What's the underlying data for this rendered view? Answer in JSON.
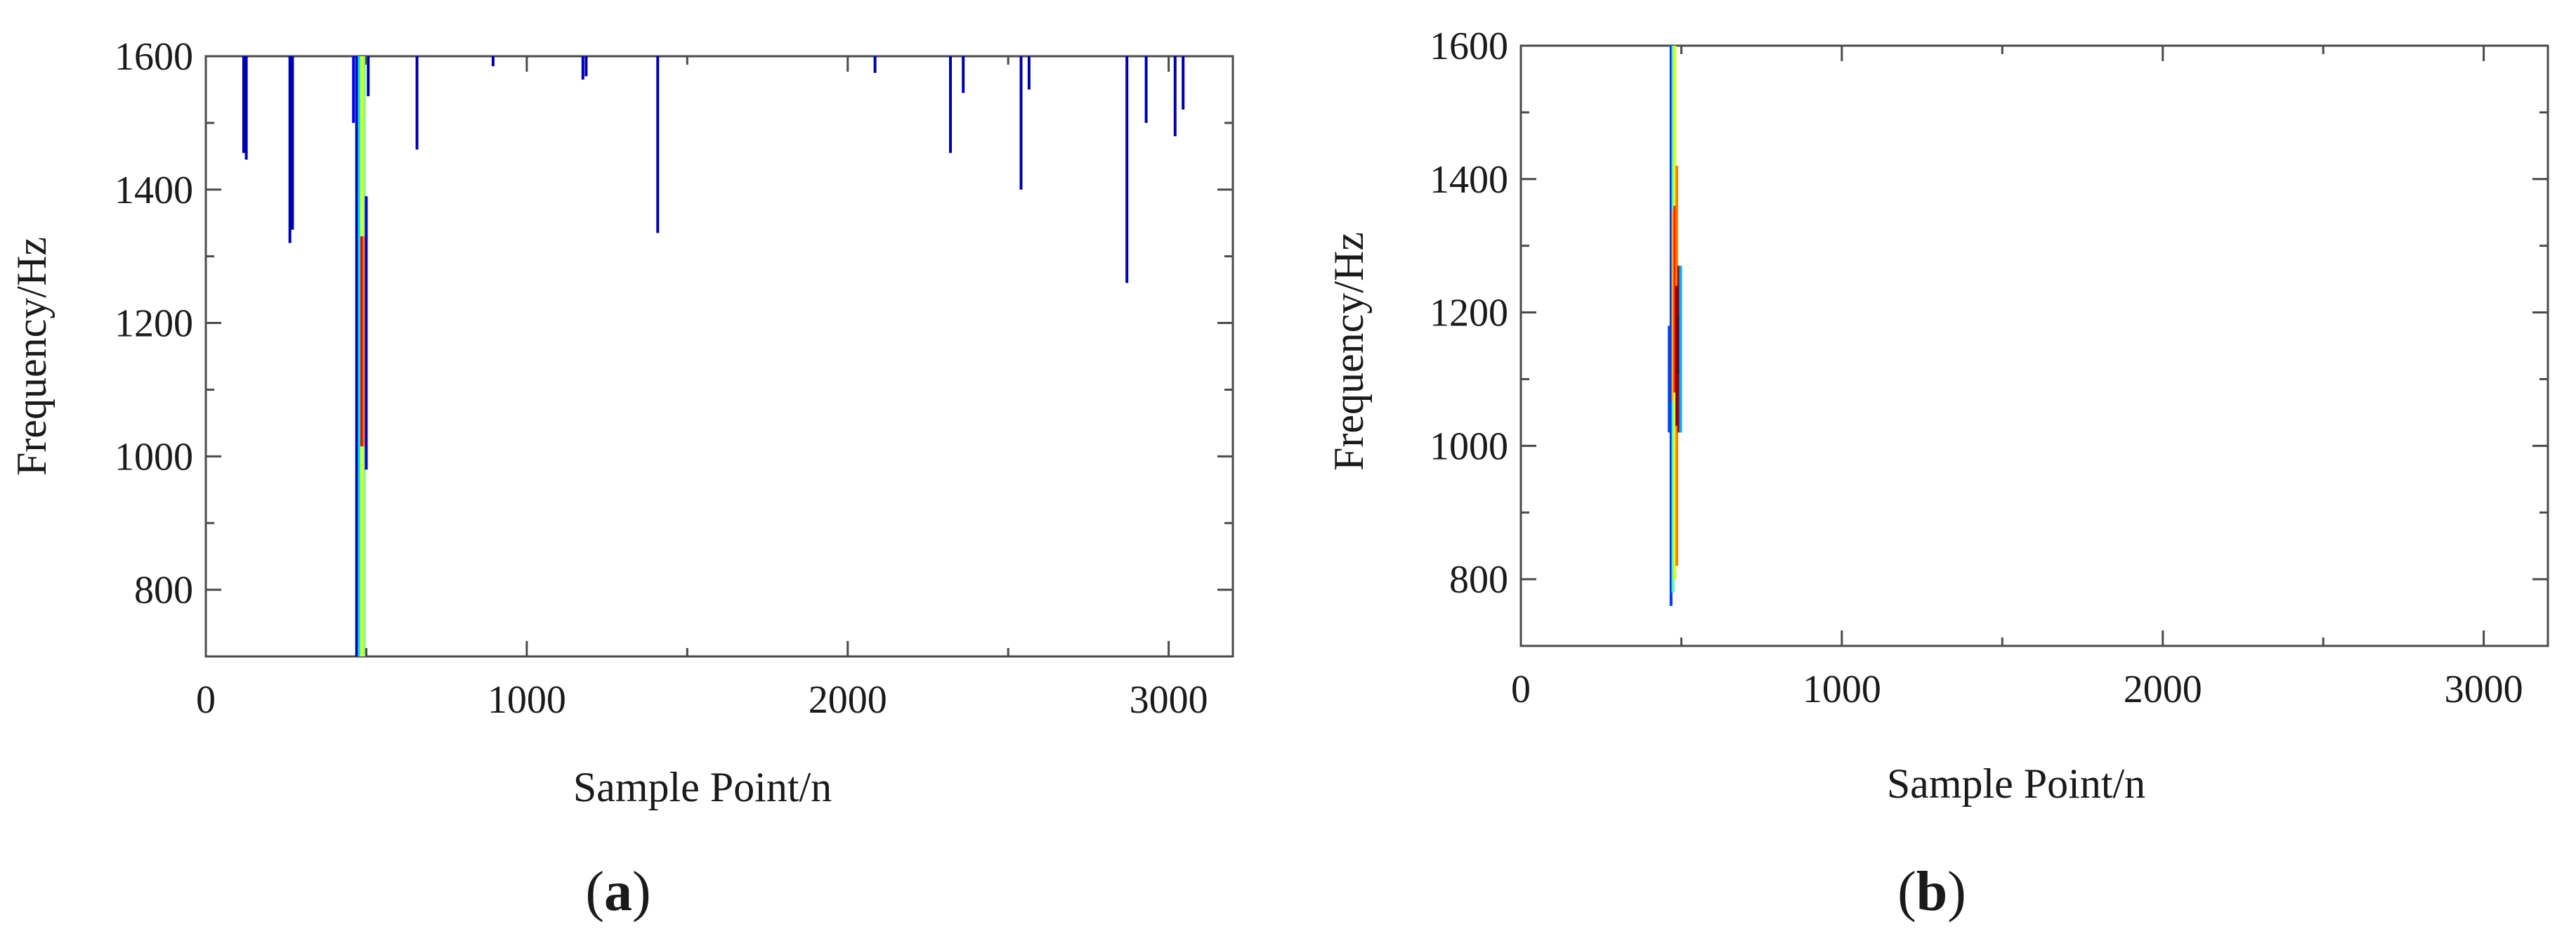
{
  "chart_data": [
    {
      "type": "scatter",
      "panel": "a",
      "panel_label": "a",
      "xlabel": "Sample Point/n",
      "ylabel": "Frequency/Hz",
      "xlim": [
        0,
        3200
      ],
      "ylim": [
        700,
        1600
      ],
      "xticks": [
        0,
        1000,
        2000,
        3000
      ],
      "yticks": [
        800,
        1000,
        1200,
        1400,
        1600
      ],
      "minor_ticks": true,
      "grid": false,
      "legend": "none",
      "colormap": "jet",
      "spikes": [
        {
          "x": 118,
          "y0": 1455,
          "y1": 1600,
          "level": 0.05
        },
        {
          "x": 126,
          "y0": 1445,
          "y1": 1600,
          "level": 0.05
        },
        {
          "x": 262,
          "y0": 1320,
          "y1": 1600,
          "level": 0.05
        },
        {
          "x": 270,
          "y0": 1340,
          "y1": 1600,
          "level": 0.05
        },
        {
          "x": 460,
          "y0": 1500,
          "y1": 1600,
          "level": 0.12
        },
        {
          "x": 470,
          "y0": 700,
          "y1": 1600,
          "level": 0.05
        },
        {
          "x": 478,
          "y0": 700,
          "y1": 1600,
          "level": 0.35
        },
        {
          "x": 486,
          "y0": 700,
          "y1": 1600,
          "level": 0.62
        },
        {
          "x": 494,
          "y0": 700,
          "y1": 1600,
          "level": 0.5
        },
        {
          "x": 500,
          "y0": 980,
          "y1": 1390,
          "level": 0.08
        },
        {
          "x": 506,
          "y0": 1540,
          "y1": 1600,
          "level": 0.05
        },
        {
          "x": 658,
          "y0": 1460,
          "y1": 1600,
          "level": 0.05
        },
        {
          "x": 895,
          "y0": 1585,
          "y1": 1600,
          "level": 0.05
        },
        {
          "x": 1175,
          "y0": 1565,
          "y1": 1600,
          "level": 0.05
        },
        {
          "x": 1185,
          "y0": 1570,
          "y1": 1600,
          "level": 0.05
        },
        {
          "x": 1408,
          "y0": 1335,
          "y1": 1600,
          "level": 0.05
        },
        {
          "x": 2085,
          "y0": 1575,
          "y1": 1600,
          "level": 0.05
        },
        {
          "x": 2320,
          "y0": 1455,
          "y1": 1600,
          "level": 0.05
        },
        {
          "x": 2360,
          "y0": 1545,
          "y1": 1600,
          "level": 0.05
        },
        {
          "x": 2540,
          "y0": 1400,
          "y1": 1600,
          "level": 0.05
        },
        {
          "x": 2565,
          "y0": 1550,
          "y1": 1600,
          "level": 0.05
        },
        {
          "x": 2870,
          "y0": 1260,
          "y1": 1600,
          "level": 0.05
        },
        {
          "x": 2930,
          "y0": 1500,
          "y1": 1600,
          "level": 0.05
        },
        {
          "x": 3020,
          "y0": 1480,
          "y1": 1600,
          "level": 0.05
        },
        {
          "x": 3045,
          "y0": 1520,
          "y1": 1600,
          "level": 0.05
        }
      ]
    },
    {
      "type": "scatter",
      "panel": "b",
      "panel_label": "b",
      "xlabel": "Sample Point/n",
      "ylabel": "Frequency/Hz",
      "xlim": [
        0,
        3200
      ],
      "ylim": [
        700,
        1600
      ],
      "xticks": [
        0,
        1000,
        2000,
        3000
      ],
      "yticks": [
        800,
        1000,
        1200,
        1400,
        1600
      ],
      "minor_ticks": true,
      "grid": false,
      "legend": "none",
      "colormap": "jet",
      "spikes": [
        {
          "x": 462,
          "y0": 1020,
          "y1": 1180,
          "level": 0.2
        },
        {
          "x": 468,
          "y0": 760,
          "y1": 1600,
          "level": 0.18
        },
        {
          "x": 474,
          "y0": 780,
          "y1": 1600,
          "level": 0.45
        },
        {
          "x": 480,
          "y0": 800,
          "y1": 1600,
          "level": 0.6
        },
        {
          "x": 486,
          "y0": 820,
          "y1": 1420,
          "level": 0.75
        },
        {
          "x": 492,
          "y0": 1020,
          "y1": 1270,
          "level": 0.95
        },
        {
          "x": 498,
          "y0": 1020,
          "y1": 1270,
          "level": 0.3
        }
      ]
    }
  ]
}
